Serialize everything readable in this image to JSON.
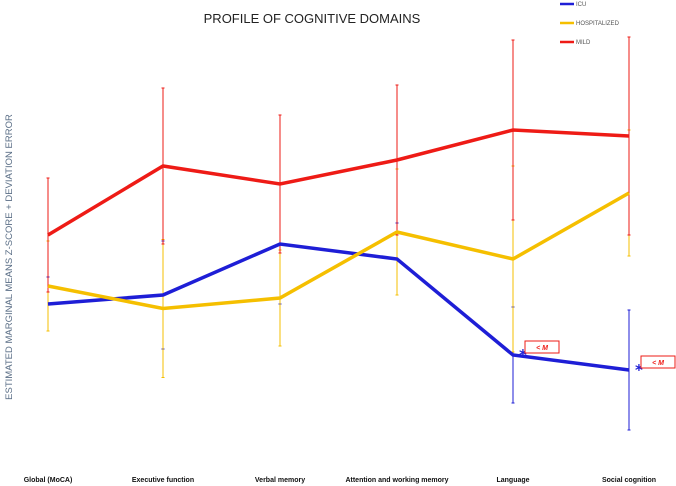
{
  "chart_data": {
    "type": "line",
    "title": "PROFILE OF COGNITIVE DOMAINS",
    "xlabel": "",
    "ylabel": "ESTIMATED MARGINAL MEANS Z-SCORE + DEVIATION ERROR",
    "categories": [
      "Global (MoCA)",
      "Executive function",
      "Verbal memory",
      "Attention and working memory",
      "Language",
      "Social cognition"
    ],
    "ylim": [
      0,
      100
    ],
    "grid": false,
    "legend_position": "top-right",
    "series": [
      {
        "name": "ICU",
        "color": "#1e1ed6",
        "values": [
          40,
          43,
          60,
          55,
          23,
          18
        ],
        "errors": [
          9,
          18,
          20,
          12,
          16,
          20
        ]
      },
      {
        "name": "HOSPITALIZED",
        "color": "#f5bf00",
        "values": [
          46,
          38.5,
          42,
          64,
          55,
          77
        ],
        "errors": [
          15,
          23,
          16,
          21,
          31,
          21
        ]
      },
      {
        "name": "MILD",
        "color": "#ee1b16",
        "values": [
          63,
          86,
          80,
          88,
          98,
          96
        ],
        "errors": [
          19,
          26,
          23,
          25,
          30,
          33
        ]
      }
    ],
    "annotations": [
      {
        "category": "Language",
        "series": "ICU",
        "marker": "*",
        "label": "< M"
      },
      {
        "category": "Social cognition",
        "series": "ICU",
        "marker": "*",
        "label": "< M"
      }
    ]
  }
}
